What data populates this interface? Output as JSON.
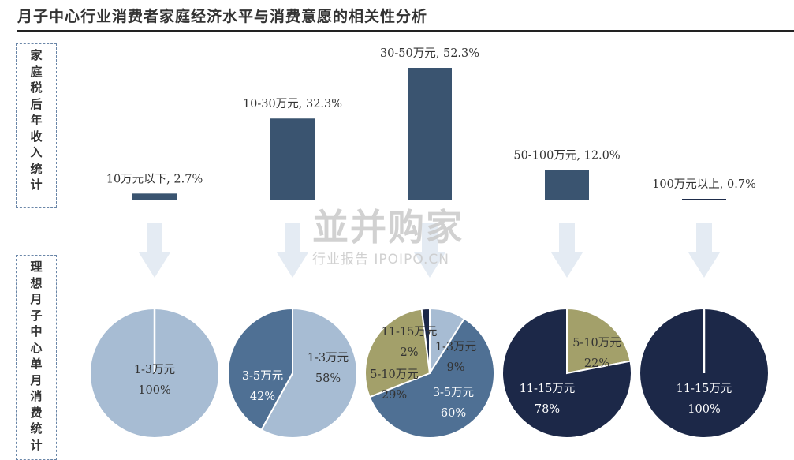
{
  "title": "月子中心行业消费者家庭经济水平与消费意愿的相关性分析",
  "side_labels": {
    "top": [
      "家",
      "庭",
      "税",
      "后",
      "年",
      "收",
      "入",
      "统",
      "计"
    ],
    "bottom": [
      "理",
      "想",
      "月",
      "子",
      "中",
      "心",
      "单",
      "月",
      "消",
      "费",
      "统",
      "计"
    ]
  },
  "watermark": {
    "main": "並并购家",
    "sub": "行业报告 IPOIPO.CN"
  },
  "chart_data": [
    {
      "type": "bar",
      "categories": [
        "10万元以下",
        "10-30万元",
        "30-50万元",
        "50-100万元",
        "100万元以上"
      ],
      "values": [
        2.7,
        32.3,
        52.3,
        12.0,
        0.7
      ],
      "labels": [
        "10万元以下, 2.7%",
        "10-30万元, 32.3%",
        "30-50万元, 52.3%",
        "50-100万元, 12.0%",
        "100万元以上, 0.7%"
      ],
      "colors": [
        "#3a5470",
        "#3a5470",
        "#3a5470",
        "#3a5470",
        "#1e2c4a"
      ],
      "baseline_note": "bars hang from a per-bar baseline"
    },
    {
      "type": "pie",
      "group": "10万元以下",
      "slices": [
        {
          "label": "1-3万元",
          "value": 100,
          "pct": "100%",
          "color": "#a7bcd3"
        }
      ]
    },
    {
      "type": "pie",
      "group": "10-30万元",
      "slices": [
        {
          "label": "1-3万元",
          "value": 58,
          "pct": "58%",
          "color": "#a7bcd3"
        },
        {
          "label": "3-5万元",
          "value": 42,
          "pct": "42%",
          "color": "#4f7094"
        }
      ]
    },
    {
      "type": "pie",
      "group": "30-50万元",
      "slices": [
        {
          "label": "1-3万元",
          "value": 9,
          "pct": "9%",
          "color": "#a7bcd3"
        },
        {
          "label": "3-5万元",
          "value": 60,
          "pct": "60%",
          "color": "#4f7094"
        },
        {
          "label": "5-10万元",
          "value": 29,
          "pct": "29%",
          "color": "#a3a06a"
        },
        {
          "label": "11-15万元",
          "value": 2,
          "pct": "2%",
          "color": "#1c2848"
        }
      ]
    },
    {
      "type": "pie",
      "group": "50-100万元",
      "slices": [
        {
          "label": "5-10万元",
          "value": 22,
          "pct": "22%",
          "color": "#a3a06a"
        },
        {
          "label": "11-15万元",
          "value": 78,
          "pct": "78%",
          "color": "#1c2848"
        }
      ]
    },
    {
      "type": "pie",
      "group": "100万元以上",
      "slices": [
        {
          "label": "11-15万元",
          "value": 100,
          "pct": "100%",
          "color": "#1c2848"
        }
      ]
    }
  ]
}
